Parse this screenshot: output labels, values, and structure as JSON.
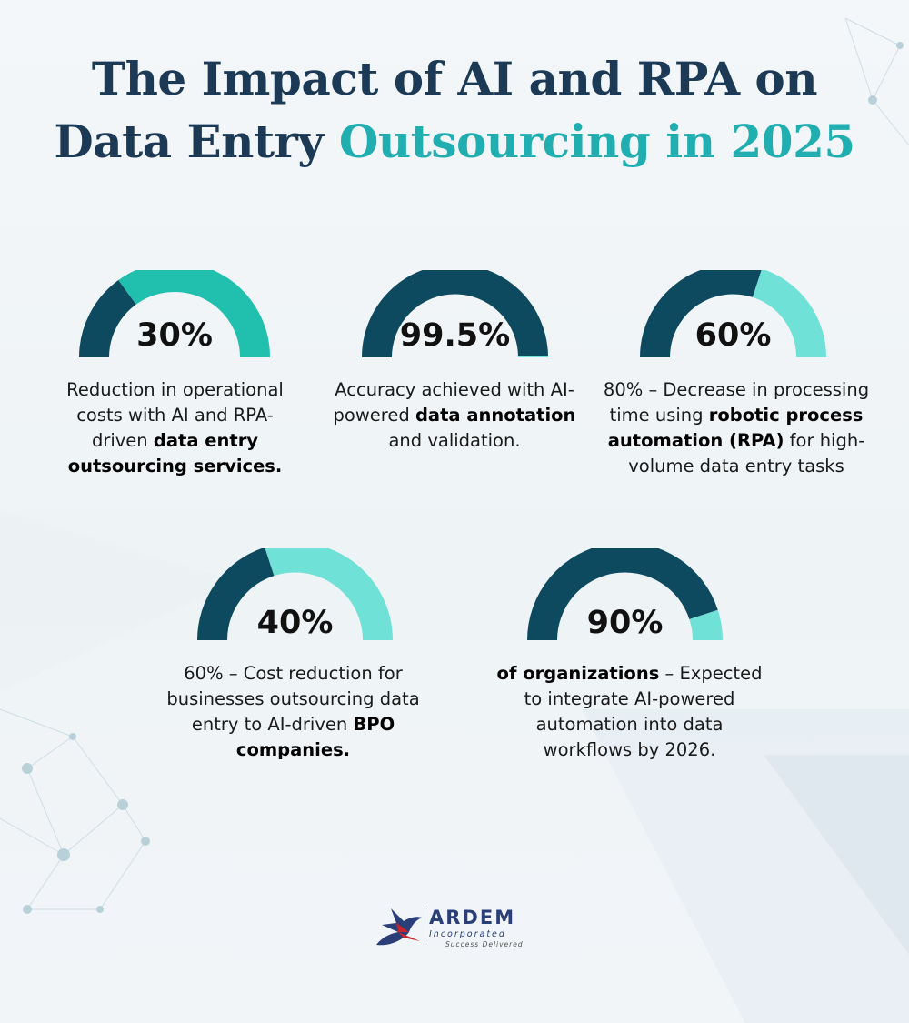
{
  "title": {
    "line1": "The Impact of AI and RPA on",
    "line2_prefix": "Data Entry ",
    "line2_accent": "Outsourcing in 2025"
  },
  "colors": {
    "dark": "#0d4a5f",
    "accent": "#1fbeae",
    "light": "#6fe1d6",
    "title": "#1c3a56",
    "title_accent": "#20aeb0"
  },
  "stats": [
    {
      "value": "30%",
      "fill": 0.3,
      "color": "#0d4a5f",
      "track": "#20bfae",
      "desc": [
        {
          "t": "Reduction in operational costs with AI and RPA-driven "
        },
        {
          "t": "data entry outsourcing services.",
          "b": true
        }
      ]
    },
    {
      "value": "99.5%",
      "fill": 0.995,
      "color": "#0d4a5f",
      "track": "#6fe1d6",
      "desc": [
        {
          "t": "Accuracy achieved with AI-powered "
        },
        {
          "t": "data annotation",
          "b": true
        },
        {
          "t": " and validation."
        }
      ]
    },
    {
      "value": "60%",
      "fill": 0.6,
      "color": "#0d4a5f",
      "track": "#6fe1d6",
      "desc": [
        {
          "t": "80% – Decrease in processing time using "
        },
        {
          "t": "robotic process automation (RPA)",
          "b": true
        },
        {
          "t": " for high-volume data entry tasks"
        }
      ]
    },
    {
      "value": "40%",
      "fill": 0.4,
      "color": "#0d4a5f",
      "track": "#6fe1d6",
      "desc": [
        {
          "t": "60% – Cost reduction for businesses outsourcing data entry to AI-driven "
        },
        {
          "t": "BPO companies.",
          "b": true
        }
      ]
    },
    {
      "value": "90%",
      "fill": 0.9,
      "color": "#0d4a5f",
      "track": "#6fe1d6",
      "desc": [
        {
          "t": "of organizations",
          "b": true
        },
        {
          "t": " – Expected to integrate AI-powered automation into data workflows by 2026."
        }
      ]
    }
  ],
  "logo": {
    "name": "ARDEM",
    "sub": "Incorporated",
    "tagline": "Success Delivered"
  }
}
